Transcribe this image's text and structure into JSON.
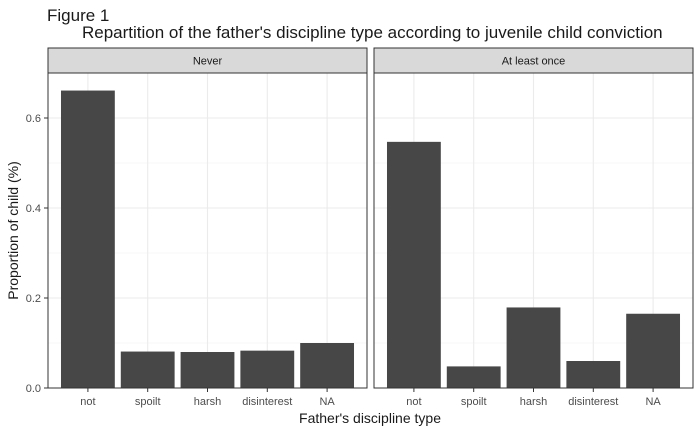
{
  "figure": {
    "label": "Figure 1",
    "title": "Repartition of the father's discipline type according to juvenile child conviction"
  },
  "chart_data": {
    "type": "bar",
    "xlabel": "Father's discipline type",
    "ylabel": "Proportion of child (%)",
    "ylim": [
      0,
      0.7
    ],
    "yticks": [
      "0.0",
      "0.2",
      "0.4",
      "0.6"
    ],
    "categories": [
      "not",
      "spoilt",
      "harsh",
      "disinterest",
      "NA"
    ],
    "grid": true,
    "bar_color": "#474747",
    "panels": [
      {
        "name": "Never",
        "values": [
          0.661,
          0.081,
          0.08,
          0.083,
          0.1
        ]
      },
      {
        "name": "At least once",
        "values": [
          0.547,
          0.048,
          0.179,
          0.06,
          0.165
        ]
      }
    ]
  }
}
